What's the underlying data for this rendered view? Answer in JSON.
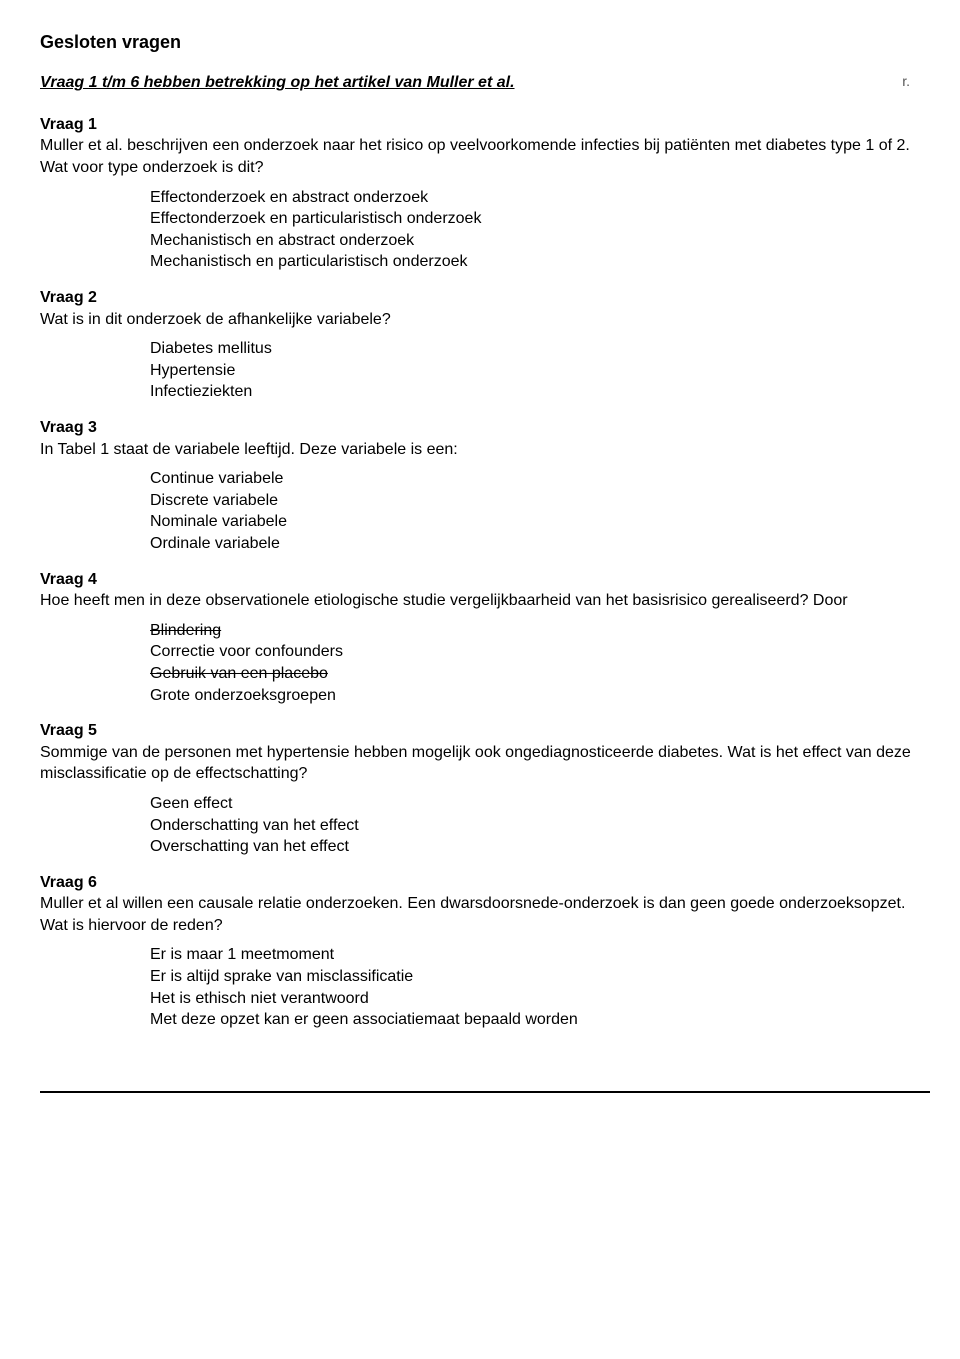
{
  "title": "Gesloten vragen",
  "subtitle": "Vraag 1 t/m 6 hebben betrekking op het artikel van Muller et al.",
  "tick": "r.",
  "questions": [
    {
      "heading": "Vraag 1",
      "text": "Muller et al. beschrijven een onderzoek naar het risico op veelvoorkomende infecties bij patiënten met diabetes type 1 of 2. Wat voor type onderzoek is dit?",
      "options": [
        {
          "label": "Effectonderzoek en abstract onderzoek",
          "struck": false
        },
        {
          "label": "Effectonderzoek en particularistisch onderzoek",
          "struck": false
        },
        {
          "label": "Mechanistisch en abstract onderzoek",
          "struck": false
        },
        {
          "label": "Mechanistisch en particularistisch onderzoek",
          "struck": false
        }
      ]
    },
    {
      "heading": "Vraag 2",
      "text": "Wat is in dit onderzoek de afhankelijke variabele?",
      "options": [
        {
          "label": "Diabetes mellitus",
          "struck": false
        },
        {
          "label": "Hypertensie",
          "struck": false
        },
        {
          "label": "Infectieziekten",
          "struck": false
        }
      ]
    },
    {
      "heading": "Vraag 3",
      "text": "In Tabel 1 staat de variabele leeftijd. Deze variabele is een:",
      "options": [
        {
          "label": "Continue variabele",
          "struck": false
        },
        {
          "label": "Discrete variabele",
          "struck": false
        },
        {
          "label": "Nominale variabele",
          "struck": false
        },
        {
          "label": "Ordinale variabele",
          "struck": false
        }
      ]
    },
    {
      "heading": "Vraag 4",
      "text": "Hoe heeft men in deze observationele etiologische studie vergelijkbaarheid van het basisrisico gerealiseerd? Door",
      "options": [
        {
          "label": "Blindering",
          "struck": true
        },
        {
          "label": "Correctie voor confounders",
          "struck": false
        },
        {
          "label": "Gebruik van een placebo",
          "struck": true
        },
        {
          "label": "Grote onderzoeksgroepen",
          "struck": false
        }
      ]
    },
    {
      "heading": "Vraag 5",
      "text": "Sommige van de personen met hypertensie hebben mogelijk ook ongediagnosticeerde diabetes. Wat is het effect van deze misclassificatie op de effectschatting?",
      "options": [
        {
          "label": "Geen effect",
          "struck": false
        },
        {
          "label": "Onderschatting van het effect",
          "struck": false
        },
        {
          "label": "Overschatting van het effect",
          "struck": false
        }
      ]
    },
    {
      "heading": "Vraag 6",
      "text": "Muller et al willen een causale relatie onderzoeken. Een dwarsdoorsnede-onderzoek is dan geen goede onderzoeksopzet. Wat is hiervoor de reden?",
      "options": [
        {
          "label": "Er is maar 1 meetmoment",
          "struck": false
        },
        {
          "label": "Er is altijd sprake van misclassificatie",
          "struck": false
        },
        {
          "label": "Het is ethisch niet verantwoord",
          "struck": false
        },
        {
          "label": "Met deze opzet kan er geen associatiemaat bepaald worden",
          "struck": false
        }
      ]
    }
  ]
}
